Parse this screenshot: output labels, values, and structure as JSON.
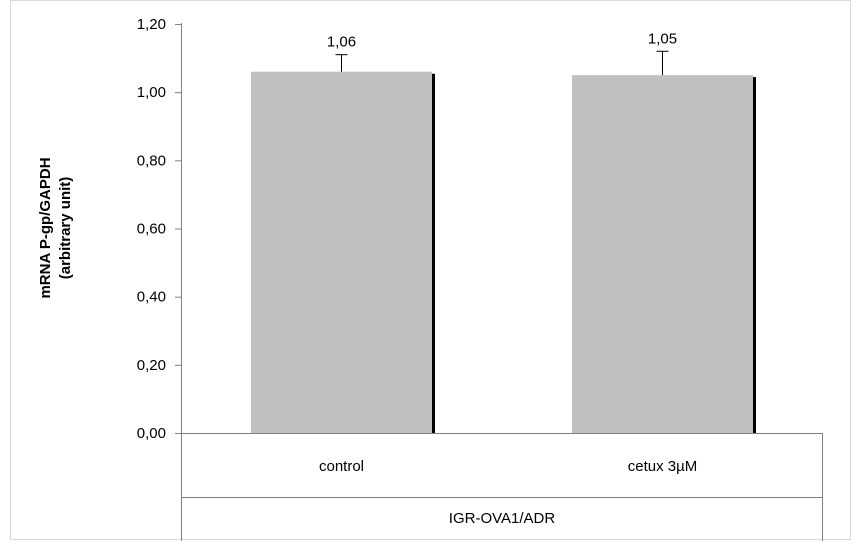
{
  "chart_data": {
    "type": "bar",
    "categories": [
      "control",
      "cetux 3µM"
    ],
    "group_label": "IGR-OVA1/ADR",
    "values": [
      1.06,
      1.05
    ],
    "value_labels": [
      "1,06",
      "1,05"
    ],
    "error_upper": [
      1.11,
      1.12
    ],
    "ylabel_line1": "mRNA P-gp/GAPDH",
    "ylabel_line2": "(arbitrary unit)",
    "ylim": [
      0,
      1.2
    ],
    "yticks": [
      {
        "value": 0.0,
        "label": "0,00"
      },
      {
        "value": 0.2,
        "label": "0,20"
      },
      {
        "value": 0.4,
        "label": "0,40"
      },
      {
        "value": 0.6,
        "label": "0,60"
      },
      {
        "value": 0.8,
        "label": "0,80"
      },
      {
        "value": 1.0,
        "label": "1,00"
      },
      {
        "value": 1.2,
        "label": "1,20"
      }
    ],
    "grid": false,
    "bar_color": "#c0c0c0",
    "shadow_color": "#000000"
  }
}
